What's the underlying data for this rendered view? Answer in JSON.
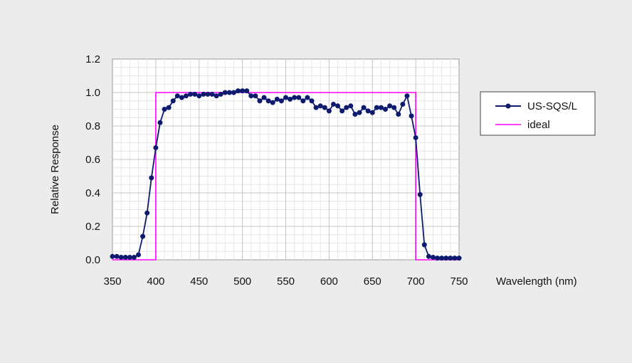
{
  "chart_data": {
    "type": "line",
    "title": "",
    "xlabel": "Wavelength (nm)",
    "ylabel": "Relative Response",
    "xlim": [
      350,
      750
    ],
    "ylim": [
      0,
      1.2
    ],
    "x_ticks": [
      "350",
      "400",
      "450",
      "500",
      "550",
      "600",
      "650",
      "700",
      "750"
    ],
    "y_ticks": [
      "0.0",
      "0.2",
      "0.4",
      "0.6",
      "0.8",
      "1.0",
      "1.2"
    ],
    "grid": true,
    "legend_position": "right",
    "series": [
      {
        "name": "US-SQS/L",
        "color": "#0d1a6e",
        "marker": "circle",
        "x": [
          350,
          355,
          360,
          365,
          370,
          375,
          380,
          385,
          390,
          395,
          400,
          405,
          410,
          415,
          420,
          425,
          430,
          435,
          440,
          445,
          450,
          455,
          460,
          465,
          470,
          475,
          480,
          485,
          490,
          495,
          500,
          505,
          510,
          515,
          520,
          525,
          530,
          535,
          540,
          545,
          550,
          555,
          560,
          565,
          570,
          575,
          580,
          585,
          590,
          595,
          600,
          605,
          610,
          615,
          620,
          625,
          630,
          635,
          640,
          645,
          650,
          655,
          660,
          665,
          670,
          675,
          680,
          685,
          690,
          695,
          700,
          705,
          710,
          715,
          720,
          725,
          730,
          735,
          740,
          745,
          750
        ],
        "y": [
          0.02,
          0.02,
          0.015,
          0.015,
          0.015,
          0.015,
          0.03,
          0.14,
          0.28,
          0.49,
          0.67,
          0.82,
          0.9,
          0.91,
          0.95,
          0.98,
          0.97,
          0.98,
          0.99,
          0.99,
          0.98,
          0.99,
          0.99,
          0.99,
          0.98,
          0.99,
          1.0,
          1.0,
          1.0,
          1.01,
          1.01,
          1.01,
          0.98,
          0.98,
          0.95,
          0.97,
          0.95,
          0.94,
          0.96,
          0.95,
          0.97,
          0.96,
          0.97,
          0.97,
          0.95,
          0.97,
          0.95,
          0.91,
          0.92,
          0.91,
          0.89,
          0.93,
          0.92,
          0.89,
          0.91,
          0.92,
          0.87,
          0.88,
          0.91,
          0.89,
          0.88,
          0.91,
          0.91,
          0.9,
          0.92,
          0.91,
          0.87,
          0.93,
          0.98,
          0.86,
          0.73,
          0.39,
          0.09,
          0.02,
          0.015,
          0.01,
          0.01,
          0.01,
          0.01,
          0.01,
          0.01
        ]
      },
      {
        "name": "ideal",
        "color": "#ff00ff",
        "marker": "none",
        "x": [
          350,
          400,
          400,
          700,
          700,
          750
        ],
        "y": [
          0,
          0,
          1.0,
          1.0,
          0,
          0
        ]
      }
    ]
  }
}
